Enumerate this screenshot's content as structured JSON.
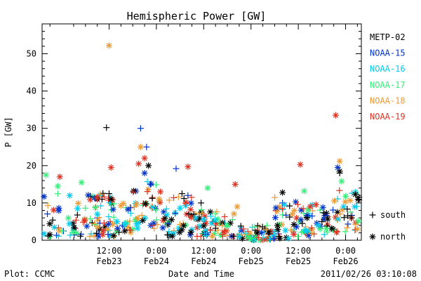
{
  "chart_data": {
    "type": "scatter",
    "title": "Hemispheric Power [GW]",
    "xlabel": "Date and Time",
    "ylabel": "P [GW]",
    "ylim": [
      0,
      58
    ],
    "xlim": [
      "2011-02-22T19:00",
      "2011-02-26T04:00"
    ],
    "x_ticks": [
      {
        "t": "2011-02-23T12:00",
        "label": "12:00",
        "sublabel": "Feb23"
      },
      {
        "t": "2011-02-24T00:00",
        "label": "0:00",
        "sublabel": "Feb24"
      },
      {
        "t": "2011-02-24T12:00",
        "label": "12:00",
        "sublabel": "Feb24"
      },
      {
        "t": "2011-02-25T00:00",
        "label": "0:00",
        "sublabel": "Feb25"
      },
      {
        "t": "2011-02-25T12:00",
        "label": "12:00",
        "sublabel": "Feb25"
      },
      {
        "t": "2011-02-26T00:00",
        "label": "0:00",
        "sublabel": "Feb26"
      }
    ],
    "y_ticks": [
      0,
      10,
      20,
      30,
      40,
      50
    ],
    "grid": false,
    "legend_placement": "right",
    "series": [
      {
        "name": "METP-02",
        "color": "#000000"
      },
      {
        "name": "NOAA-15",
        "color": "#0033cc"
      },
      {
        "name": "NOAA-16",
        "color": "#00ccee"
      },
      {
        "name": "NOAA-17",
        "color": "#33ee77"
      },
      {
        "name": "NOAA-18",
        "color": "#ee9933"
      },
      {
        "name": "NOAA-19",
        "color": "#dd3322"
      }
    ],
    "markers": [
      {
        "symbol": "+",
        "label": "south"
      },
      {
        "symbol": "*",
        "label": "north"
      }
    ],
    "points": [
      {
        "s": 0,
        "h": "south",
        "t": "2011-02-23T11:20",
        "y": 30.2
      },
      {
        "s": 0,
        "h": "south",
        "t": "2011-02-23T12:00",
        "y": 12.5
      },
      {
        "s": 0,
        "h": "north",
        "t": "2011-02-23T12:30",
        "y": 11.0
      },
      {
        "s": 0,
        "h": "north",
        "t": "2011-02-23T22:00",
        "y": 20.0
      },
      {
        "s": 0,
        "h": "south",
        "t": "2011-02-24T06:30",
        "y": 12.5
      },
      {
        "s": 0,
        "h": "south",
        "t": "2011-02-24T07:00",
        "y": 11.2
      },
      {
        "s": 0,
        "h": "south",
        "t": "2011-02-24T09:30",
        "y": 7.0
      },
      {
        "s": 0,
        "h": "south",
        "t": "2011-02-24T11:20",
        "y": 10.0
      },
      {
        "s": 0,
        "h": "south",
        "t": "2011-02-24T15:00",
        "y": 3.2
      },
      {
        "s": 0,
        "h": "south",
        "t": "2011-02-25T07:00",
        "y": 1.0
      },
      {
        "s": 0,
        "h": "north",
        "t": "2011-02-25T08:00",
        "y": 12.8
      },
      {
        "s": 0,
        "h": "south",
        "t": "2011-02-25T13:00",
        "y": 4.5
      },
      {
        "s": 0,
        "h": "south",
        "t": "2011-02-25T18:00",
        "y": 5.0
      },
      {
        "s": 0,
        "h": "south",
        "t": "2011-02-25T22:30",
        "y": 18.0
      },
      {
        "s": 0,
        "h": "north",
        "t": "2011-02-25T22:30",
        "y": 18.5
      },
      {
        "s": 0,
        "h": "south",
        "t": "2011-02-26T01:30",
        "y": 6.0
      },
      {
        "s": 1,
        "h": "south",
        "t": "2011-02-23T20:00",
        "y": 30.0
      },
      {
        "s": 1,
        "h": "south",
        "t": "2011-02-23T21:30",
        "y": 25.0
      },
      {
        "s": 1,
        "h": "north",
        "t": "2011-02-23T21:00",
        "y": 18.0
      },
      {
        "s": 1,
        "h": "south",
        "t": "2011-02-23T22:30",
        "y": 15.0
      },
      {
        "s": 1,
        "h": "south",
        "t": "2011-02-24T05:00",
        "y": 19.2
      },
      {
        "s": 1,
        "h": "south",
        "t": "2011-02-24T08:00",
        "y": 12.0
      },
      {
        "s": 1,
        "h": "south",
        "t": "2011-02-25T08:00",
        "y": 10.0
      },
      {
        "s": 1,
        "h": "south",
        "t": "2011-02-25T15:30",
        "y": 6.5
      },
      {
        "s": 1,
        "h": "north",
        "t": "2011-02-25T22:00",
        "y": 19.5
      },
      {
        "s": 1,
        "h": "south",
        "t": "2011-02-24T03:00",
        "y": 4.5
      },
      {
        "s": 2,
        "h": "north",
        "t": "2011-02-23T02:00",
        "y": 12.0
      },
      {
        "s": 2,
        "h": "north",
        "t": "2011-02-23T04:00",
        "y": 8.5
      },
      {
        "s": 2,
        "h": "north",
        "t": "2011-02-23T09:00",
        "y": 7.0
      },
      {
        "s": 2,
        "h": "north",
        "t": "2011-02-23T14:00",
        "y": 5.0
      },
      {
        "s": 2,
        "h": "north",
        "t": "2011-02-24T10:00",
        "y": 6.0
      },
      {
        "s": 2,
        "h": "north",
        "t": "2011-02-24T21:00",
        "y": 1.0
      },
      {
        "s": 2,
        "h": "north",
        "t": "2011-02-25T08:30",
        "y": 9.5
      },
      {
        "s": 2,
        "h": "north",
        "t": "2011-02-25T17:00",
        "y": 4.0
      },
      {
        "s": 2,
        "h": "north",
        "t": "2011-02-25T23:30",
        "y": 9.0
      },
      {
        "s": 3,
        "h": "north",
        "t": "2011-02-22T20:00",
        "y": 17.5
      },
      {
        "s": 3,
        "h": "north",
        "t": "2011-02-22T23:00",
        "y": 14.5
      },
      {
        "s": 3,
        "h": "north",
        "t": "2011-02-23T05:00",
        "y": 15.5
      },
      {
        "s": 3,
        "h": "north",
        "t": "2011-02-24T13:00",
        "y": 14.0
      },
      {
        "s": 3,
        "h": "north",
        "t": "2011-02-25T13:30",
        "y": 13.2
      },
      {
        "s": 3,
        "h": "north",
        "t": "2011-02-25T23:00",
        "y": 15.8
      },
      {
        "s": 3,
        "h": "north",
        "t": "2011-02-26T00:00",
        "y": 11.8
      },
      {
        "s": 3,
        "h": "north",
        "t": "2011-02-24T18:00",
        "y": 4.0
      },
      {
        "s": 4,
        "h": "north",
        "t": "2011-02-23T12:00",
        "y": 52.2
      },
      {
        "s": 4,
        "h": "north",
        "t": "2011-02-23T20:00",
        "y": 25.0
      },
      {
        "s": 4,
        "h": "north",
        "t": "2011-02-24T20:30",
        "y": 9.0
      },
      {
        "s": 4,
        "h": "north",
        "t": "2011-02-25T22:30",
        "y": 21.2
      },
      {
        "s": 4,
        "h": "north",
        "t": "2011-02-25T11:00",
        "y": 8.0
      },
      {
        "s": 4,
        "h": "north",
        "t": "2011-02-26T03:00",
        "y": 3.0
      },
      {
        "s": 5,
        "h": "north",
        "t": "2011-02-22T23:30",
        "y": 17.0
      },
      {
        "s": 5,
        "h": "north",
        "t": "2011-02-23T12:30",
        "y": 19.5
      },
      {
        "s": 5,
        "h": "north",
        "t": "2011-02-23T19:30",
        "y": 20.5
      },
      {
        "s": 5,
        "h": "north",
        "t": "2011-02-23T21:00",
        "y": 22.0
      },
      {
        "s": 5,
        "h": "north",
        "t": "2011-02-24T08:00",
        "y": 19.7
      },
      {
        "s": 5,
        "h": "north",
        "t": "2011-02-24T20:00",
        "y": 15.0
      },
      {
        "s": 5,
        "h": "north",
        "t": "2011-02-25T12:30",
        "y": 20.3
      },
      {
        "s": 5,
        "h": "north",
        "t": "2011-02-25T21:30",
        "y": 33.5
      },
      {
        "s": 5,
        "h": "north",
        "t": "2011-02-24T01:00",
        "y": 13.0
      },
      {
        "s": 5,
        "h": "north",
        "t": "2011-02-25T15:00",
        "y": 9.0
      }
    ],
    "background_cloud": [
      {
        "from": "2011-02-22T19:30",
        "to": "2011-02-23T14:00",
        "min": 1.0,
        "max": 13.0
      },
      {
        "from": "2011-02-23T14:00",
        "to": "2011-02-23T18:00",
        "min": 2.0,
        "max": 11.0
      },
      {
        "from": "2011-02-23T18:00",
        "to": "2011-02-24T02:00",
        "min": 3.0,
        "max": 16.0
      },
      {
        "from": "2011-02-24T02:00",
        "to": "2011-02-24T12:00",
        "min": 1.0,
        "max": 12.0
      },
      {
        "from": "2011-02-24T12:00",
        "to": "2011-02-24T20:00",
        "min": 1.0,
        "max": 8.0
      },
      {
        "from": "2011-02-24T20:00",
        "to": "2011-02-25T06:00",
        "min": 0.0,
        "max": 4.0
      },
      {
        "from": "2011-02-25T06:00",
        "to": "2011-02-25T12:00",
        "min": 0.5,
        "max": 12.0
      },
      {
        "from": "2011-02-25T12:00",
        "to": "2011-02-25T21:00",
        "min": 1.0,
        "max": 10.0
      },
      {
        "from": "2011-02-25T21:00",
        "to": "2011-02-26T03:30",
        "min": 2.0,
        "max": 14.0
      }
    ]
  },
  "footer": {
    "left": "Plot: CCMC",
    "right": "2011/02/26 03:10:08"
  }
}
